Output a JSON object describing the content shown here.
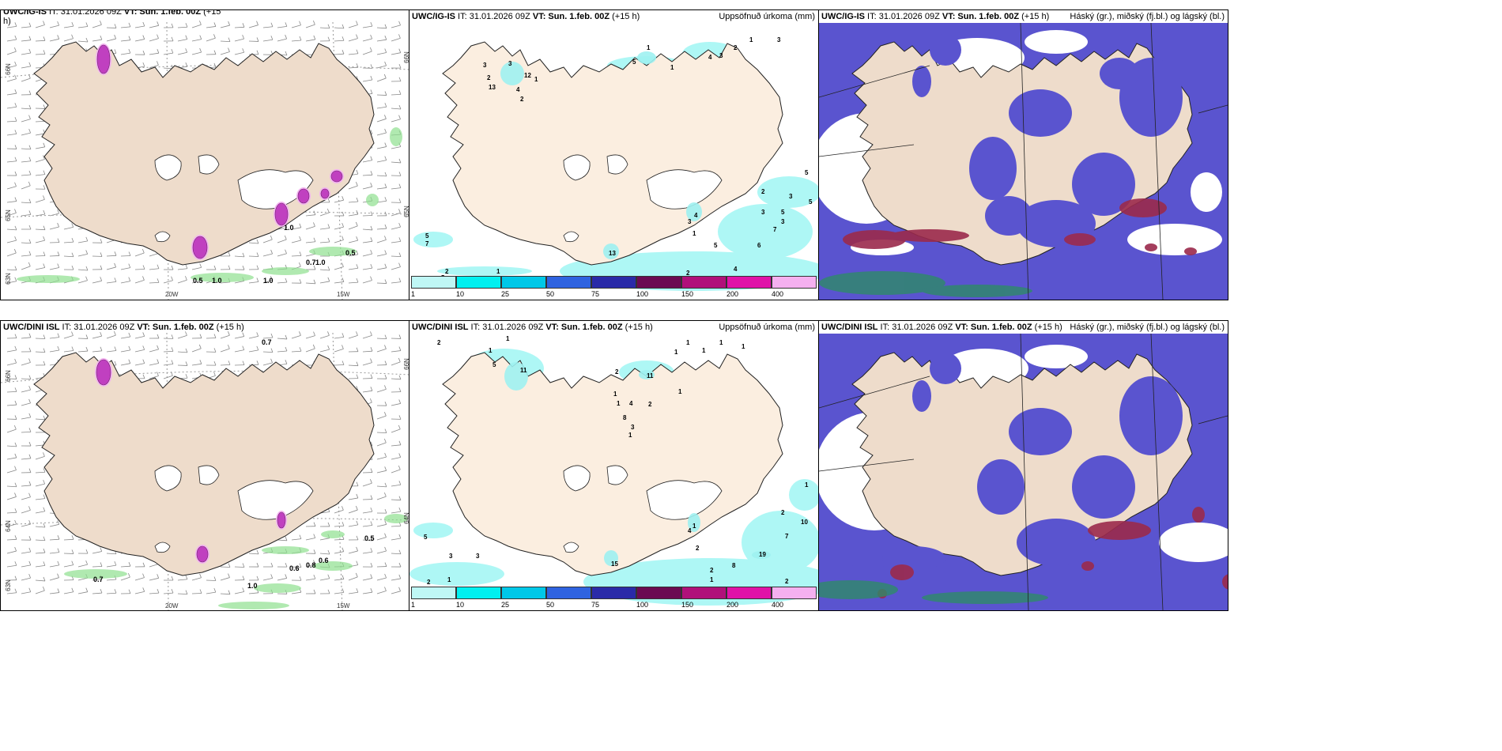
{
  "panels": {
    "top_left": {
      "title_prefix": "UWC/IG-IS",
      "title_mid": " IT: 31.01.2026 09Z ",
      "title_vt": "VT: Sun. 1.feb. 00Z",
      "title_suffix": " (+15",
      "title_wrap": "h)"
    },
    "top_mid": {
      "title_prefix": "UWC/IG-IS",
      "title_mid": " IT: 31.01.2026 09Z ",
      "title_vt": "VT: Sun. 1.feb. 00Z",
      "title_suffix": " (+15 h)",
      "right": "Uppsöfnuð úrkoma (mm)"
    },
    "top_right": {
      "title_prefix": "UWC/IG-IS",
      "title_mid": " IT: 31.01.2026 09Z ",
      "title_vt": "VT: Sun. 1.feb. 00Z",
      "title_suffix": " (+15 h)",
      "right": "Háský (gr.), miðský (fj.bl.) og lágský (bl.)"
    },
    "bot_left": {
      "title_prefix": "UWC/DINI ISL",
      "title_mid": " IT: 31.01.2026 09Z ",
      "title_vt": "VT: Sun. 1.feb. 00Z",
      "title_suffix": " (+15 h)"
    },
    "bot_mid": {
      "title_prefix": "UWC/DINI ISL",
      "title_mid": " IT: 31.01.2026 09Z ",
      "title_vt": "VT: Sun. 1.feb. 00Z",
      "title_suffix": " (+15 h)",
      "right": "Uppsöfnuð úrkoma (mm)"
    },
    "bot_right": {
      "title_prefix": "UWC/DINI ISL",
      "title_mid": " IT: 31.01.2026 09Z ",
      "title_vt": "VT: Sun. 1.feb. 00Z",
      "title_suffix": " (+15 h)",
      "right": "Háský (gr.), miðský (fj.bl.) og lágský (bl.)"
    }
  },
  "axis_labels": {
    "lat66": "66N",
    "lat64": "64N",
    "lat65": "65N",
    "lat63": "63N",
    "lon20": "20W",
    "lon15": "15W"
  },
  "colorbar": {
    "ticks": [
      "1",
      "10",
      "25",
      "50",
      "75",
      "100",
      "150",
      "200",
      "400"
    ],
    "colors": [
      "#bff7f5",
      "#00f0f0",
      "#00c8e8",
      "#2f63e0",
      "#2a2aa8",
      "#6b0a52",
      "#b0107a",
      "#e012a8",
      "#f5b0f0"
    ]
  },
  "precip_top": [
    "3",
    "3",
    "2",
    "13",
    "12",
    "1",
    "4",
    "2",
    "1",
    "5",
    "1",
    "4",
    "3",
    "2",
    "1",
    "3",
    "4",
    "3",
    "2",
    "3",
    "5",
    "5",
    "5",
    "6",
    "7",
    "1",
    "2",
    "1",
    "13",
    "5",
    "7",
    "4",
    "3",
    "5",
    "3",
    "2",
    "5"
  ],
  "precip_bot": [
    "2",
    "1",
    "1",
    "5",
    "11",
    "2",
    "1",
    "11",
    "1",
    "4",
    "8",
    "3",
    "1",
    "1",
    "2",
    "1",
    "1",
    "1",
    "1",
    "1",
    "2",
    "10",
    "7",
    "19",
    "8",
    "2",
    "2",
    "5",
    "3",
    "3",
    "2",
    "1",
    "1",
    "4",
    "15",
    "2",
    "1",
    "1"
  ],
  "wind_top": [
    "0.5",
    "1.0",
    "1.0",
    "0.7",
    "1.0",
    "0.5",
    "1.0"
  ],
  "wind_bot": [
    "0.7",
    "0.7",
    "0.6",
    "0.8",
    "0.6",
    "1.0",
    "0.5"
  ]
}
